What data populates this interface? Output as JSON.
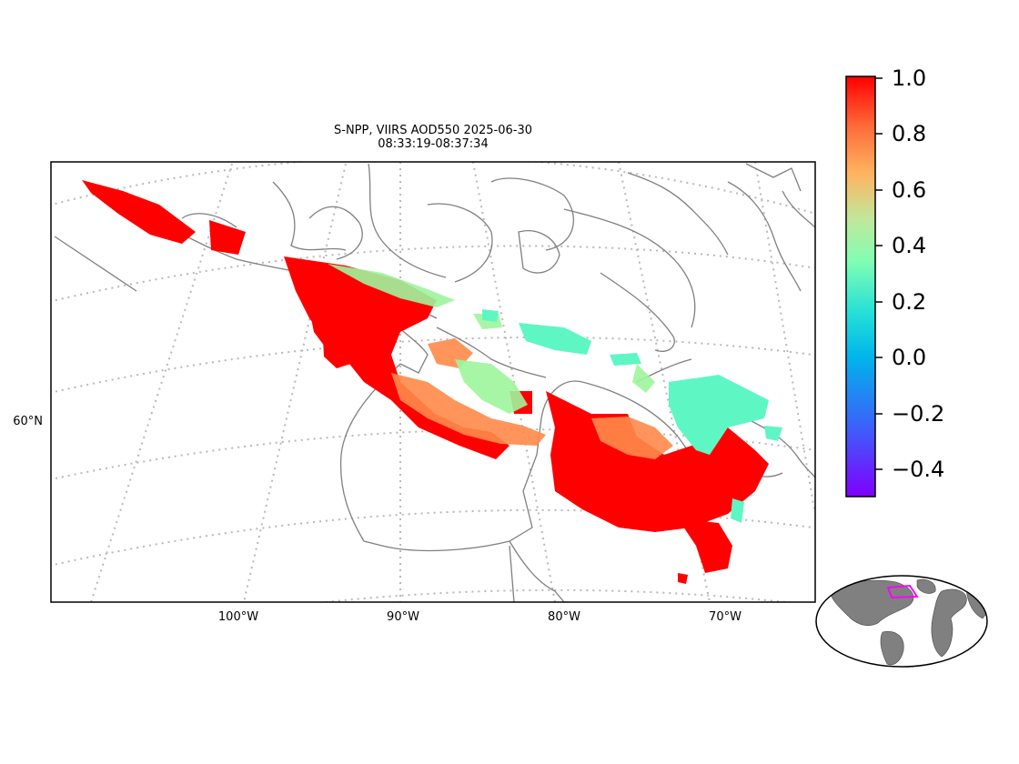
{
  "title": {
    "line1": "S-NPP, VIIRS AOD550 2025-06-30",
    "line2": "08:33:19-08:37:34"
  },
  "map": {
    "lon_labels": [
      "100°W",
      "90°W",
      "80°W",
      "70°W"
    ],
    "lat_labels": [
      "60°N"
    ],
    "gridlines": true,
    "colormap": "rainbow"
  },
  "colorbar": {
    "range": [
      -0.5,
      1.0
    ],
    "tick_labels": [
      "1.0",
      "0.8",
      "0.6",
      "0.4",
      "0.2",
      "0.0",
      "−0.2",
      "−0.4"
    ]
  },
  "inset": {
    "name": "world-locator-globe",
    "highlight_color": "#ff00ff"
  }
}
